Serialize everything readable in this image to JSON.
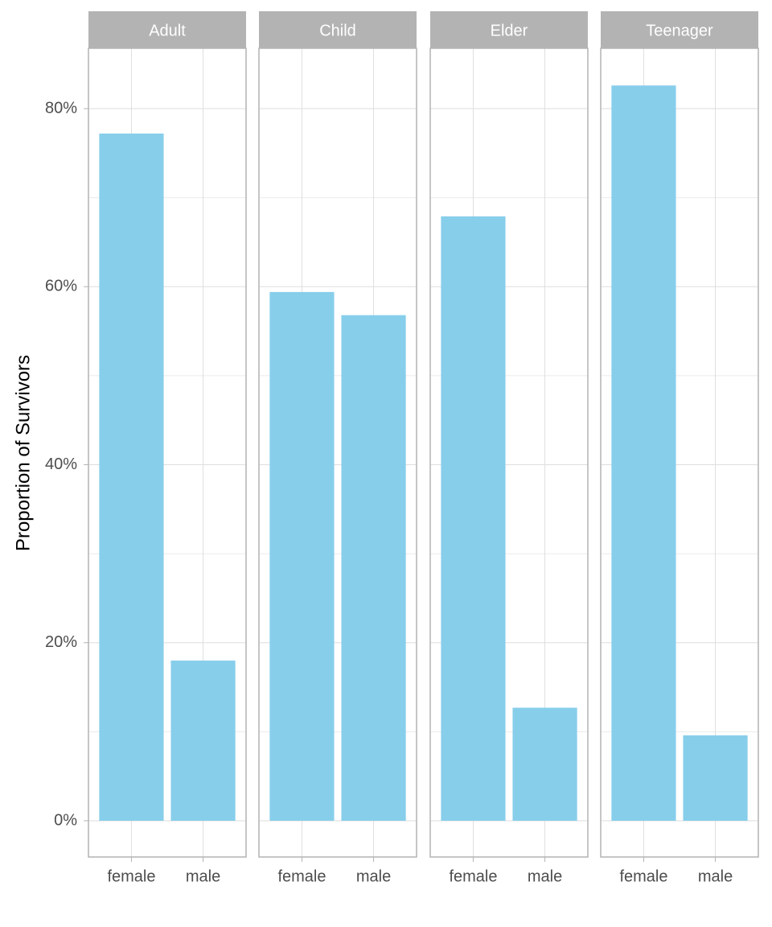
{
  "chart_data": {
    "type": "bar",
    "ylabel": "Proportion of Survivors",
    "color": "#87ceeb",
    "ylim": [
      -4.07,
      86.78
    ],
    "yticks": [
      {
        "value": 0,
        "label": "0%"
      },
      {
        "value": 20,
        "label": "20%"
      },
      {
        "value": 40,
        "label": "40%"
      },
      {
        "value": 60,
        "label": "60%"
      },
      {
        "value": 80,
        "label": "80%"
      }
    ],
    "minor_yticks": [
      10,
      30,
      50,
      70
    ],
    "grid": true,
    "facets": [
      {
        "title": "Adult",
        "categories": [
          "female",
          "male"
        ],
        "values": [
          77.2,
          18.0
        ]
      },
      {
        "title": "Child",
        "categories": [
          "female",
          "male"
        ],
        "values": [
          59.4,
          56.8
        ]
      },
      {
        "title": "Elder",
        "categories": [
          "female",
          "male"
        ],
        "values": [
          67.9,
          12.7
        ]
      },
      {
        "title": "Teenager",
        "categories": [
          "female",
          "male"
        ],
        "values": [
          82.6,
          9.6
        ]
      }
    ]
  }
}
